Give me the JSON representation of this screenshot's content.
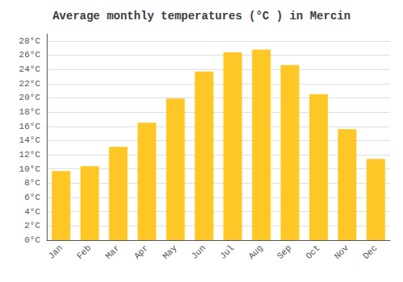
{
  "chart_data": {
    "type": "bar",
    "title": "Average monthly temperatures (°C ) in Mercin",
    "categories": [
      "Jan",
      "Feb",
      "Mar",
      "Apr",
      "May",
      "Jun",
      "Jul",
      "Aug",
      "Sep",
      "Oct",
      "Nov",
      "Dec"
    ],
    "values": [
      9.7,
      10.4,
      13.1,
      16.5,
      19.9,
      23.7,
      26.4,
      26.8,
      24.6,
      20.5,
      15.6,
      11.4
    ],
    "color": "#FFC726",
    "ylim": [
      0,
      29
    ],
    "yticks": [
      {
        "value": 0,
        "label": "0°C"
      },
      {
        "value": 2,
        "label": "2°C"
      },
      {
        "value": 4,
        "label": "4°C"
      },
      {
        "value": 6,
        "label": "6°C"
      },
      {
        "value": 8,
        "label": "8°C"
      },
      {
        "value": 10,
        "label": "10°C"
      },
      {
        "value": 12,
        "label": "12°C"
      },
      {
        "value": 14,
        "label": "14°C"
      },
      {
        "value": 16,
        "label": "16°C"
      },
      {
        "value": 18,
        "label": "18°C"
      },
      {
        "value": 20,
        "label": "20°C"
      },
      {
        "value": 22,
        "label": "22°C"
      },
      {
        "value": 24,
        "label": "24°C"
      },
      {
        "value": 26,
        "label": "26°C"
      },
      {
        "value": 28,
        "label": "28°C"
      }
    ],
    "grid": true
  }
}
